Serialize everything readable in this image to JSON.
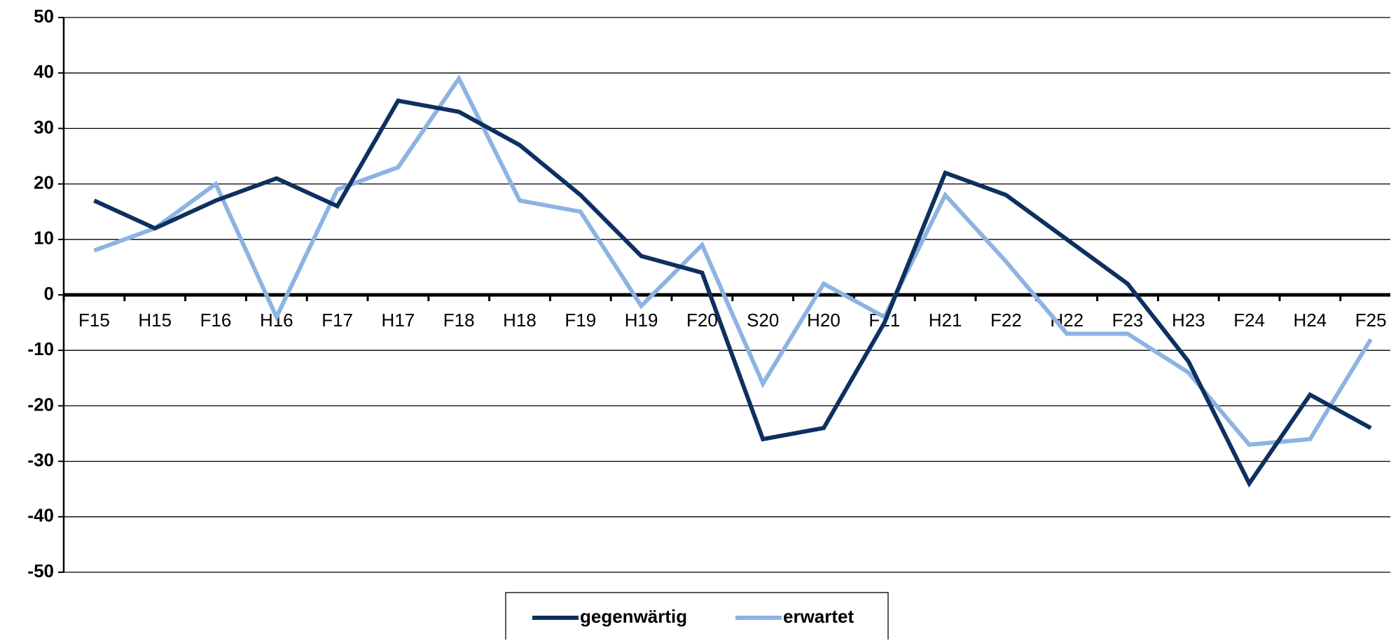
{
  "chart_data": {
    "type": "line",
    "categories": [
      "F15",
      "H15",
      "F16",
      "H16",
      "F17",
      "H17",
      "F18",
      "H18",
      "F19",
      "H19",
      "F20",
      "S20",
      "H20",
      "F21",
      "H21",
      "F22",
      "H22",
      "F23",
      "H23",
      "F24",
      "H24",
      "F25"
    ],
    "series": [
      {
        "name": "gegenwärtig",
        "color": "#0d3060",
        "values": [
          17,
          12,
          17,
          21,
          16,
          35,
          33,
          27,
          18,
          7,
          4,
          -26,
          -24,
          -5,
          22,
          18,
          10,
          2,
          -12,
          -34,
          -18,
          -24
        ]
      },
      {
        "name": "erwartet",
        "color": "#8db3e2",
        "values": [
          8,
          12,
          20,
          -4,
          19,
          23,
          39,
          17,
          15,
          -2,
          9,
          -16,
          2,
          -4,
          18,
          6,
          -7,
          -7,
          -14,
          -27,
          -26,
          -8
        ]
      }
    ],
    "ylim": [
      -50,
      50
    ],
    "yticks": [
      -50,
      -40,
      -30,
      -20,
      -10,
      0,
      10,
      20,
      30,
      40,
      50
    ],
    "grid": true
  }
}
